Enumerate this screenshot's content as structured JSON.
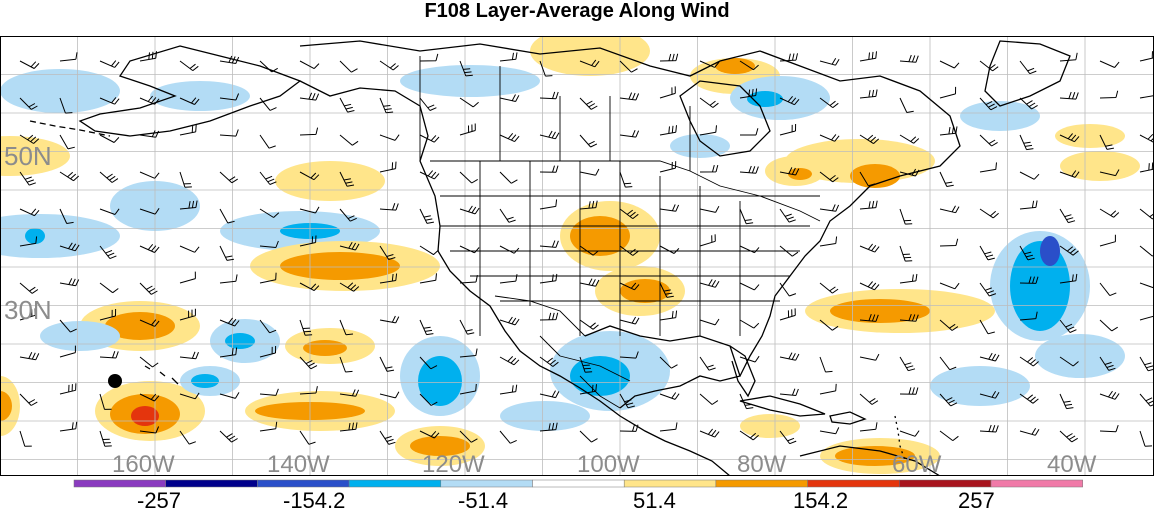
{
  "title": "F108 Layer-Average Along Wind",
  "lat_labels": [
    "50N",
    "30N"
  ],
  "lon_labels": [
    "160W",
    "140W",
    "120W",
    "100W",
    "80W",
    "60W",
    "40W"
  ],
  "colorbar": {
    "tick_labels": [
      "-257",
      "-154.2",
      "-51.4",
      "51.4",
      "154.2",
      "257"
    ],
    "colors": [
      "#8a3bbf",
      "#00008b",
      "#2a4fc9",
      "#00b0ee",
      "#b3dcf5",
      "#ffffff",
      "#ffe58a",
      "#f59a00",
      "#e4350d",
      "#a8141e",
      "#f07aa8"
    ]
  },
  "palette": {
    "light_blue": "#b3dcf5",
    "mid_blue": "#00b0ee",
    "dark_blue": "#2a4fc9",
    "light_yellow": "#ffe58a",
    "orange": "#f59a00",
    "red_orange": "#e4350d",
    "coastline": "#000000",
    "grid": "#bdbdbd"
  },
  "map_features": {
    "projection": "cylindrical equidistant",
    "overlays": [
      "shaded along-wind field",
      "wind barbs",
      "coastlines",
      "state/country borders",
      "lat/lon grid"
    ],
    "marker": "black dot"
  }
}
